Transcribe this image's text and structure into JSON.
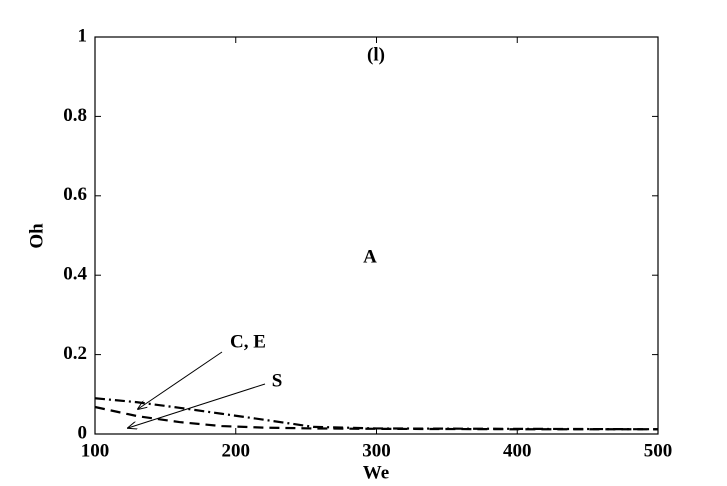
{
  "chart_data": {
    "type": "line",
    "xlabel": "We",
    "ylabel": "Oh",
    "x": [
      100,
      130,
      160,
      190,
      220,
      255,
      300,
      400,
      500
    ],
    "series": [
      {
        "color": "#000000",
        "style": "dashdot",
        "values": [
          0.09,
          0.08,
          0.066,
          0.051,
          0.036,
          0.018,
          0.014,
          0.013,
          0.012
        ]
      },
      {
        "color": "#000000",
        "style": "dashed",
        "values": [
          0.068,
          0.045,
          0.03,
          0.02,
          0.016,
          0.014,
          0.013,
          0.012,
          0.012
        ]
      }
    ],
    "annotations": [
      "(l)",
      "A",
      "C, E",
      "S"
    ],
    "xlim": [
      100,
      500
    ],
    "xticks": [
      100,
      200,
      300,
      400,
      500
    ],
    "ylim": [
      0,
      1
    ],
    "yticks": [
      0,
      0.2,
      0.4,
      0.6,
      0.8,
      1
    ],
    "grid": false
  }
}
